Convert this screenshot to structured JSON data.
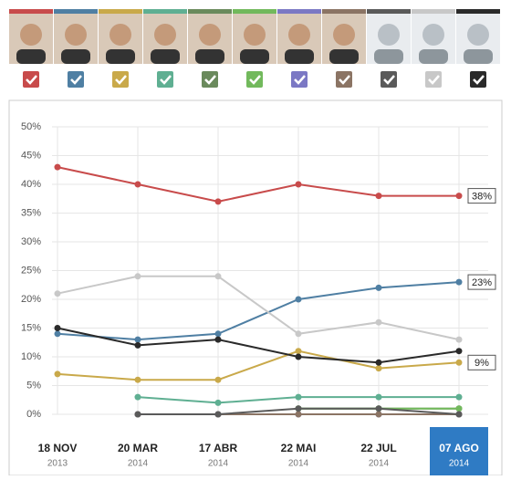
{
  "chart_data": {
    "type": "line",
    "categories": [
      "18 NOV",
      "20 MAR",
      "17 ABR",
      "22 MAI",
      "22 JUL",
      "07 AGO"
    ],
    "category_years": [
      "2013",
      "2014",
      "2014",
      "2014",
      "2014",
      "2014"
    ],
    "ylim": [
      0,
      50
    ],
    "yticks": [
      {
        "value": 0,
        "label": "0%"
      },
      {
        "value": 5,
        "label": "5%"
      },
      {
        "value": 10,
        "label": "10%"
      },
      {
        "value": 15,
        "label": "15%"
      },
      {
        "value": 20,
        "label": "20%"
      },
      {
        "value": 25,
        "label": "25%"
      },
      {
        "value": 30,
        "label": "30%"
      },
      {
        "value": 35,
        "label": "35%"
      },
      {
        "value": 40,
        "label": "40%"
      },
      {
        "value": 45,
        "label": "45%"
      },
      {
        "value": 50,
        "label": "50%"
      }
    ],
    "grid": true,
    "series": [
      {
        "color": "#c84b4b",
        "values": [
          43,
          40,
          37,
          40,
          38,
          38
        ],
        "value_labels": [
          null,
          null,
          null,
          null,
          null,
          "38%"
        ]
      },
      {
        "color": "#4f7fa3",
        "values": [
          14,
          13,
          14,
          20,
          22,
          23
        ],
        "value_labels": [
          null,
          null,
          null,
          null,
          null,
          "23%"
        ]
      },
      {
        "color": "#c9a94a",
        "values": [
          7,
          6,
          6,
          11,
          8,
          9
        ],
        "value_labels": [
          null,
          null,
          null,
          null,
          null,
          "9%"
        ]
      },
      {
        "color": "#5faf92",
        "values": [
          null,
          3,
          2,
          3,
          3,
          3
        ]
      },
      {
        "color": "#6a8a5c",
        "values": [
          null,
          null,
          null,
          1,
          1,
          1
        ]
      },
      {
        "color": "#72b95c",
        "values": [
          null,
          null,
          null,
          1,
          1,
          1
        ]
      },
      {
        "color": "#7b78c4",
        "values": [
          null,
          0,
          0,
          0,
          0,
          0
        ]
      },
      {
        "color": "#8b7464",
        "values": [
          null,
          0,
          0,
          0,
          0,
          0
        ]
      },
      {
        "color": "#5a5a5a",
        "values": [
          null,
          0,
          0,
          1,
          1,
          0
        ]
      },
      {
        "color": "#c8c8c8",
        "values": [
          21,
          24,
          24,
          14,
          16,
          13
        ]
      },
      {
        "color": "#2a2a2a",
        "values": [
          15,
          12,
          13,
          10,
          9,
          11
        ]
      }
    ]
  }
}
